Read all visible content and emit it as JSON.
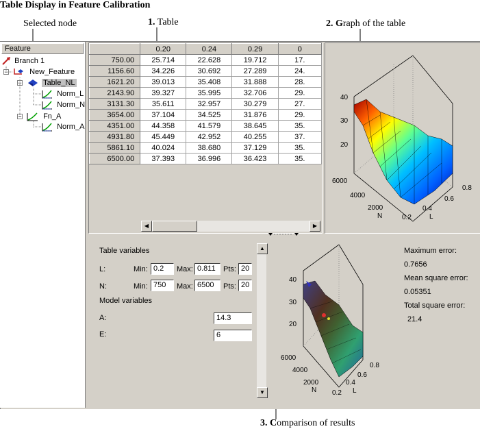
{
  "annotations": {
    "title": "Table Display in Feature Calibration",
    "selected_node": "Selected node",
    "table_num": "1.",
    "table": "Table",
    "graph_num": "2.",
    "graph_g": "G",
    "graph_rest": "raph of the table",
    "compare_num": "3.",
    "compare_c": "C",
    "compare_rest": "omparison of results"
  },
  "tree": {
    "header": "Feature",
    "items": [
      {
        "label": "Branch 1"
      },
      {
        "label": "New_Feature"
      },
      {
        "label": "Table_NL"
      },
      {
        "label": "Norm_L"
      },
      {
        "label": "Norm_N"
      },
      {
        "label": "Fn_A"
      },
      {
        "label": "Norm_A"
      }
    ]
  },
  "table": {
    "columns": [
      "0.20",
      "0.24",
      "0.29",
      "0"
    ],
    "rows": [
      {
        "h": "750.00",
        "v": [
          "25.714",
          "22.628",
          "19.712",
          "17."
        ]
      },
      {
        "h": "1156.60",
        "v": [
          "34.226",
          "30.692",
          "27.289",
          "24."
        ]
      },
      {
        "h": "1621.20",
        "v": [
          "39.013",
          "35.408",
          "31.888",
          "28."
        ]
      },
      {
        "h": "2143.90",
        "v": [
          "39.327",
          "35.995",
          "32.706",
          "29."
        ]
      },
      {
        "h": "3131.30",
        "v": [
          "35.611",
          "32.957",
          "30.279",
          "27."
        ]
      },
      {
        "h": "3654.00",
        "v": [
          "37.104",
          "34.525",
          "31.876",
          "29."
        ]
      },
      {
        "h": "4351.00",
        "v": [
          "44.358",
          "41.579",
          "38.645",
          "35."
        ]
      },
      {
        "h": "4931.80",
        "v": [
          "45.449",
          "42.952",
          "40.255",
          "37."
        ]
      },
      {
        "h": "5861.10",
        "v": [
          "40.024",
          "38.680",
          "37.129",
          "35."
        ]
      },
      {
        "h": "6500.00",
        "v": [
          "37.393",
          "36.996",
          "36.423",
          "35."
        ]
      }
    ]
  },
  "graph": {
    "z_ticks": [
      "40",
      "30",
      "20"
    ],
    "n_ticks": [
      "6000",
      "4000",
      "2000"
    ],
    "n_label": "N",
    "l_ticks": [
      "0.8",
      "0.6",
      "0.4",
      "0.2"
    ],
    "l_label": "L"
  },
  "graph2": {
    "z_ticks": [
      "40",
      "30",
      "20"
    ],
    "n_ticks": [
      "6000",
      "4000",
      "2000"
    ],
    "n_label": "N",
    "l_ticks": [
      "0.8",
      "0.6",
      "0.4",
      "0.2"
    ],
    "l_label": "L"
  },
  "vars": {
    "table_vars_label": "Table variables",
    "L_label": "L:",
    "N_label": "N:",
    "min_label": "Min:",
    "max_label": "Max:",
    "pts_label": "Pts:",
    "L_min": "0.2",
    "L_max": "0.811",
    "L_pts": "20",
    "N_min": "750",
    "N_max": "6500",
    "N_pts": "20",
    "model_vars_label": "Model variables",
    "A_label": "A:",
    "A_value": "14.3",
    "E_label": "E:",
    "E_value": "6"
  },
  "errors": {
    "max_label": "Maximum error:",
    "max_value": "0.7656",
    "mse_label": "Mean square error:",
    "mse_value": "0.05351",
    "tse_label": "Total square error:",
    "tse_value": "21.4"
  }
}
